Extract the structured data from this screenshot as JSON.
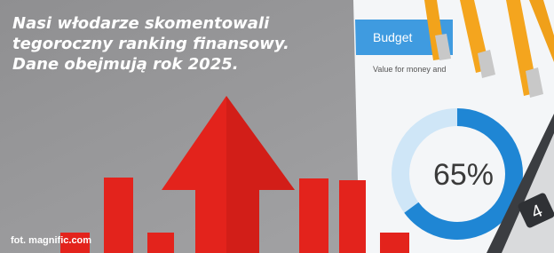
{
  "headline": [
    "Nasi włodarze skomentowali",
    "tegoroczny ranking finansowy.",
    "Dane obejmują rok 2025."
  ],
  "credit": "fot. magnific.com",
  "photo_texts": {
    "card_title": "Budget",
    "card_subtitle": "Value for money and",
    "donut_label": "65%",
    "calculator_key": "4"
  }
}
